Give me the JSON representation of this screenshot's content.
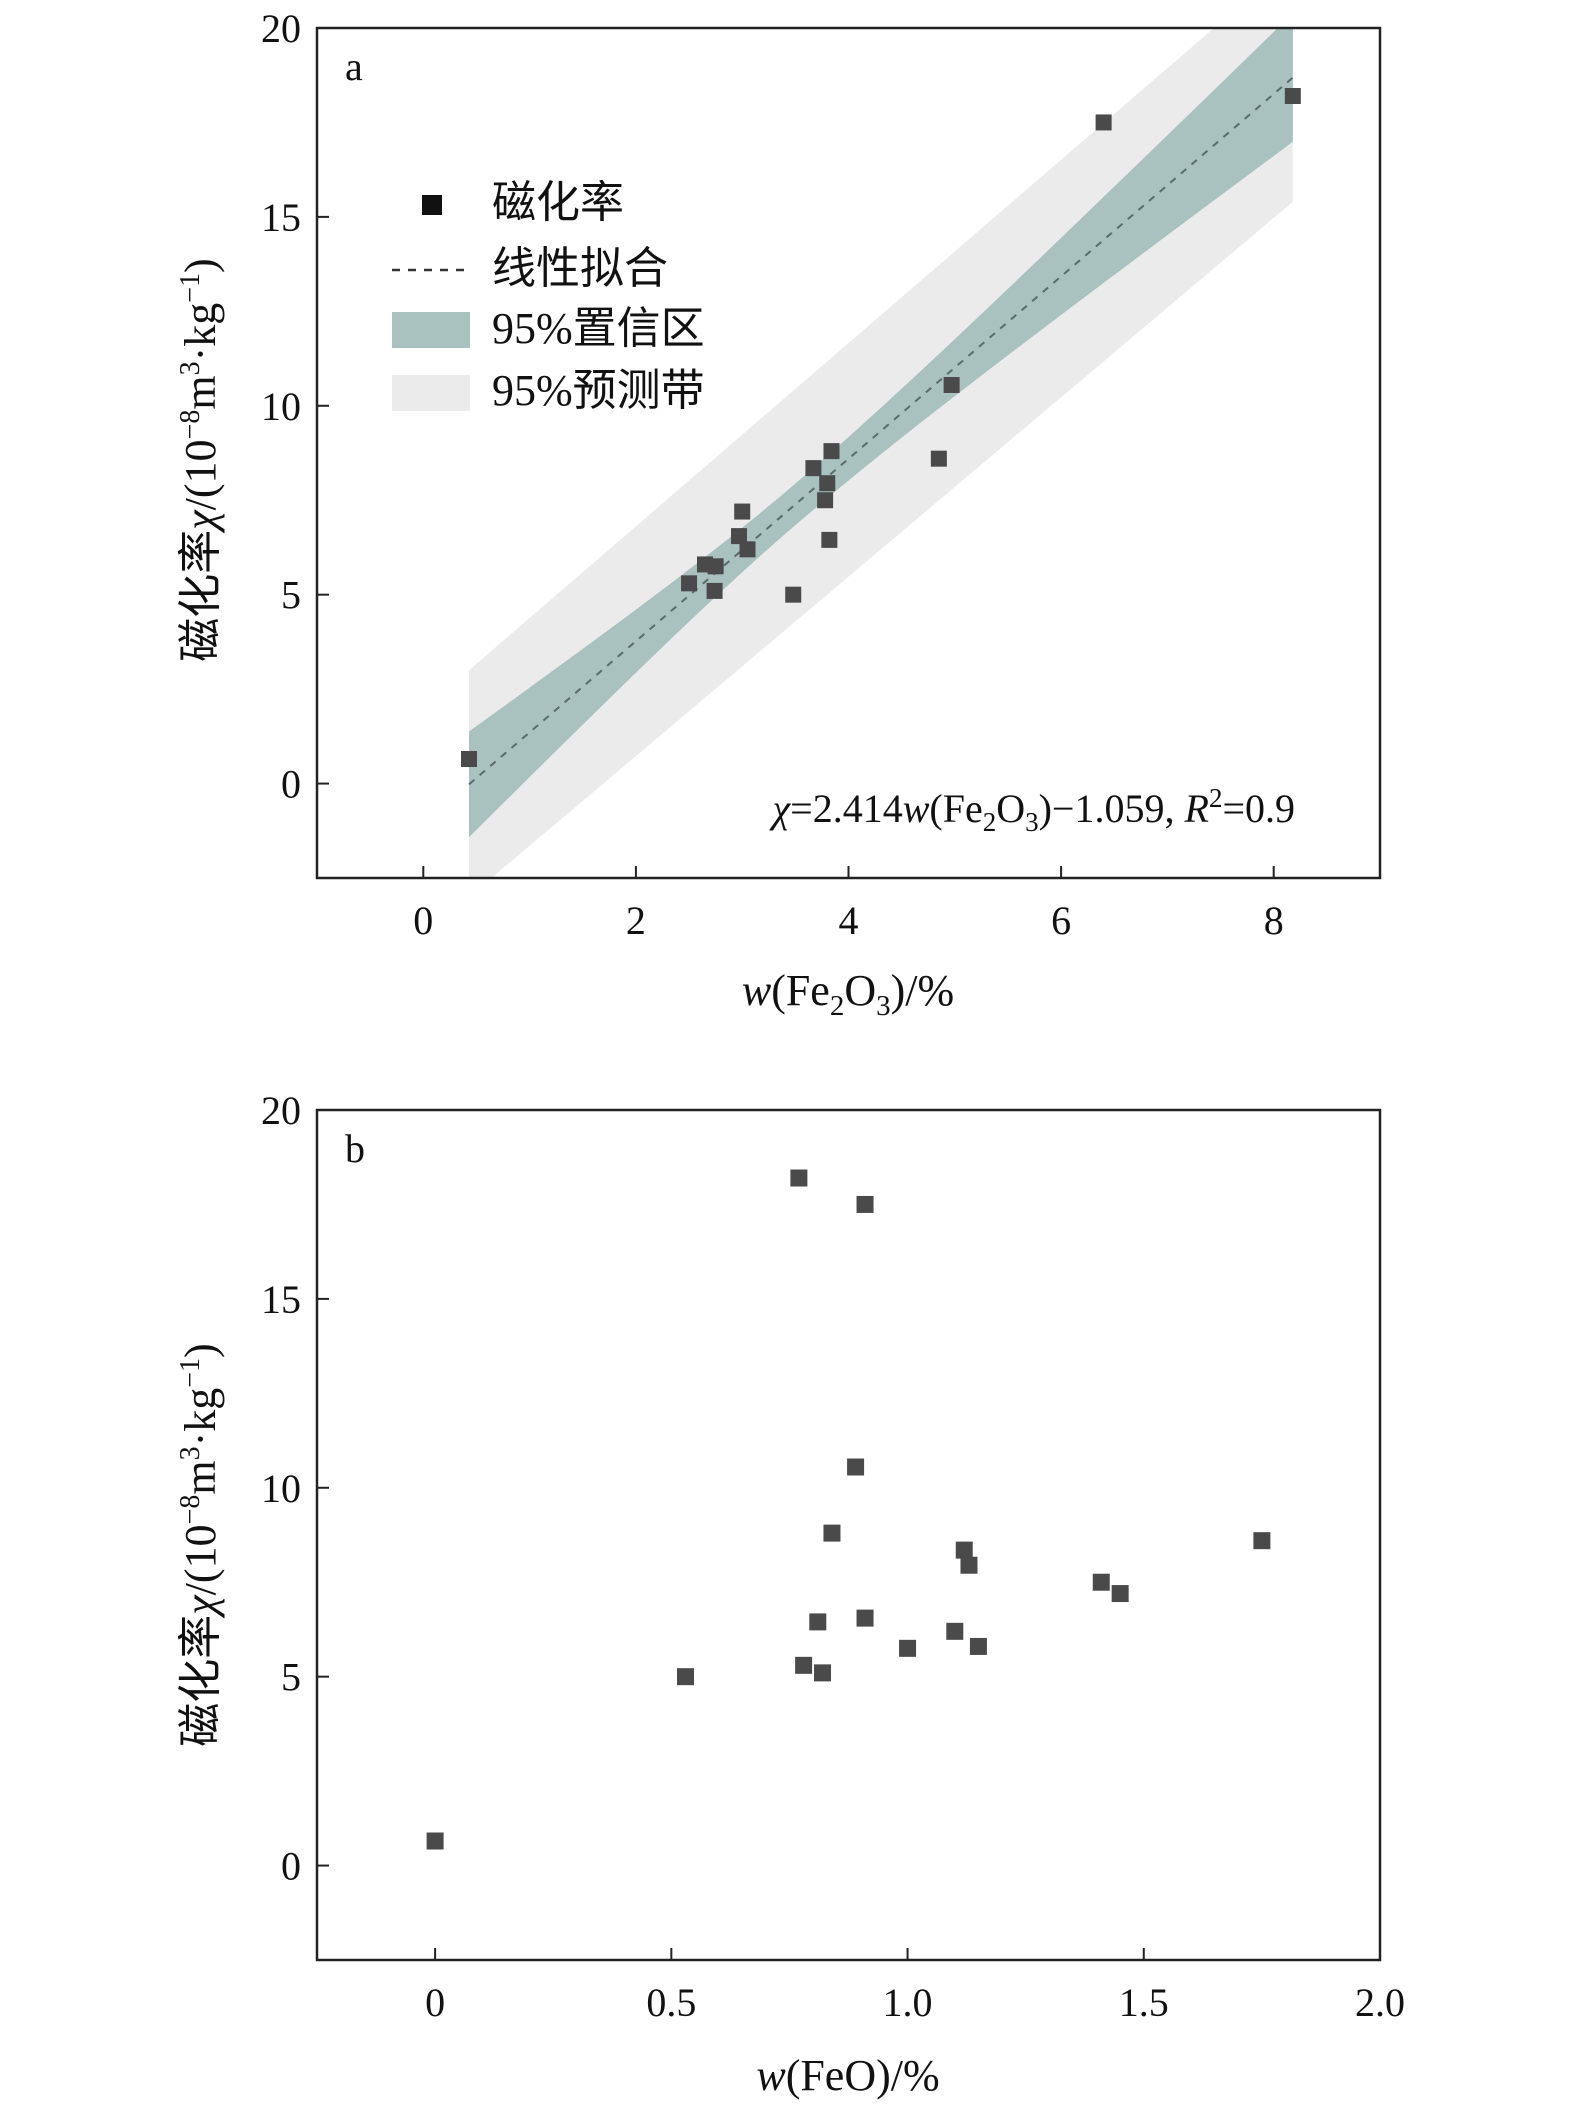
{
  "chart_data": [
    {
      "panel": "a",
      "type": "scatter",
      "xlabel_parts": [
        "w",
        "(Fe",
        "2",
        "O",
        "3",
        ")/%"
      ],
      "ylabel_parts": [
        "磁化率",
        "χ",
        "/(10",
        "−8",
        "m",
        "3",
        "·kg",
        "−1",
        ")"
      ],
      "xlim": [
        -1,
        9
      ],
      "ylim": [
        -2.5,
        20
      ],
      "xticks": [
        "0",
        "2",
        "4",
        "6",
        "8"
      ],
      "yticks": [
        "0",
        "5",
        "10",
        "15",
        "20"
      ],
      "grid": false,
      "legend_placement": "upper-left",
      "legend": [
        "磁化率",
        "线性拟合",
        "95%置信区",
        "95%预测带"
      ],
      "fit": {
        "slope": 2.414,
        "intercept": -1.059,
        "r2": 0.9,
        "x_range": [
          0.43,
          8.18
        ],
        "conf_band": {
          "lower_at_xmin": -1.5,
          "upper_at_xmin": 1.3,
          "lower_at_xmax": 16.8,
          "upper_at_xmax": 20.2
        },
        "pred_band": {
          "lower_at_xmin": -3.0,
          "upper_at_xmin": 3.0,
          "lower_at_xmax": 15.4,
          "upper_at_xmax": 21.8
        },
        "line_color": "#5a6b6b",
        "conf_color": "#a9c1bf",
        "pred_color": "#ebebeb"
      },
      "equation_parts": [
        "χ",
        "=2.414",
        "w",
        "(Fe",
        "2",
        "O",
        "3",
        ")−1.059, ",
        "R",
        "2",
        "=0.9"
      ],
      "series": [
        {
          "name": "磁化率",
          "color": "#4a4a4a",
          "points": [
            [
              0.43,
              0.65
            ],
            [
              8.18,
              18.2
            ],
            [
              6.4,
              17.5
            ],
            [
              4.97,
              10.55
            ],
            [
              4.85,
              8.6
            ],
            [
              3.84,
              8.8
            ],
            [
              3.67,
              8.35
            ],
            [
              3.8,
              7.95
            ],
            [
              3.78,
              7.5
            ],
            [
              3.82,
              6.45
            ],
            [
              3.0,
              7.2
            ],
            [
              2.97,
              6.55
            ],
            [
              3.05,
              6.2
            ],
            [
              2.65,
              5.8
            ],
            [
              2.75,
              5.75
            ],
            [
              2.5,
              5.3
            ],
            [
              2.74,
              5.1
            ],
            [
              3.48,
              5.0
            ]
          ]
        }
      ]
    },
    {
      "panel": "b",
      "type": "scatter",
      "xlabel_parts": [
        "w",
        "(FeO)/%"
      ],
      "ylabel_parts": [
        "磁化率",
        "χ",
        "/(10",
        "−8",
        "m",
        "3",
        "·kg",
        "−1",
        ")"
      ],
      "xlim": [
        -0.25,
        2.0
      ],
      "ylim": [
        -2.5,
        20
      ],
      "xticks": [
        "0",
        "0.5",
        "1.0",
        "1.5",
        "2.0"
      ],
      "yticks": [
        "0",
        "5",
        "10",
        "15",
        "20"
      ],
      "grid": false,
      "series": [
        {
          "name": "",
          "color": "#4a4a4a",
          "points": [
            [
              0.0,
              0.65
            ],
            [
              0.53,
              5.0
            ],
            [
              0.77,
              18.2
            ],
            [
              0.91,
              17.5
            ],
            [
              0.89,
              10.55
            ],
            [
              0.84,
              8.8
            ],
            [
              1.12,
              8.35
            ],
            [
              1.13,
              7.95
            ],
            [
              1.41,
              7.5
            ],
            [
              1.45,
              7.2
            ],
            [
              1.75,
              8.6
            ],
            [
              0.81,
              6.45
            ],
            [
              0.91,
              6.55
            ],
            [
              1.1,
              6.2
            ],
            [
              1.0,
              5.75
            ],
            [
              1.15,
              5.8
            ],
            [
              0.78,
              5.3
            ],
            [
              0.82,
              5.1
            ]
          ]
        }
      ]
    }
  ]
}
